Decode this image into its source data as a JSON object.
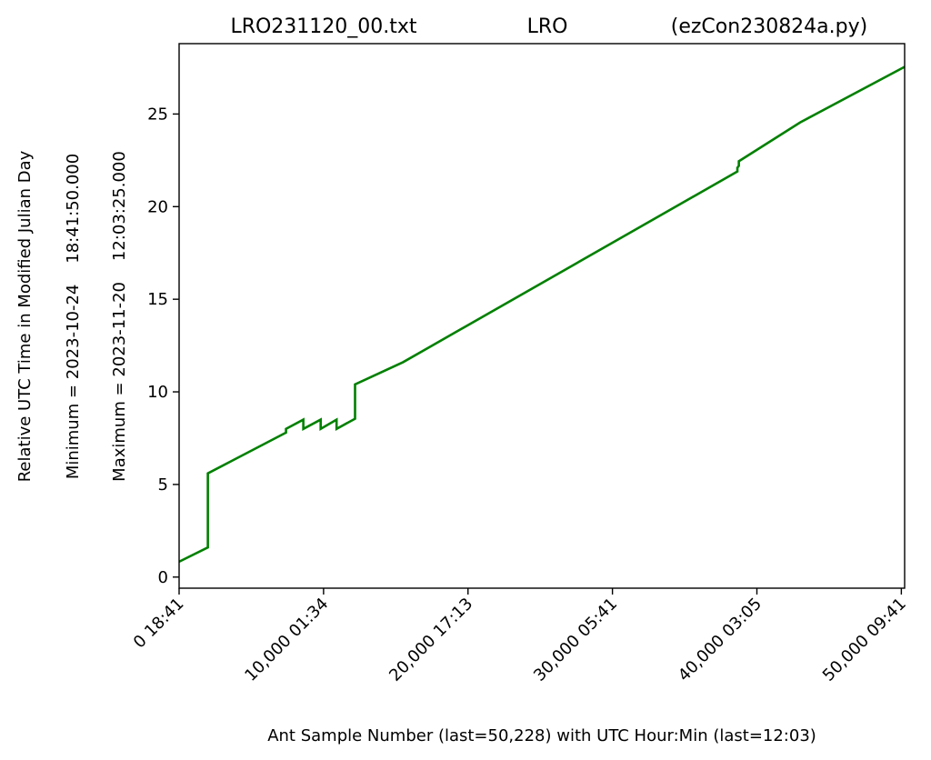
{
  "chart_data": {
    "type": "line",
    "title_parts": [
      "LRO231120_00.txt",
      "LRO",
      "(ezCon230824a.py)"
    ],
    "xlabel": "Ant Sample Number (last=50,228) with UTC Hour:Min (last=12:03)",
    "ylabel_lines": [
      "Relative UTC Time in Modified Julian Day",
      "Minimum = 2023-10-24    18:41:50.000",
      "Maximum = 2023-11-20    12:03:25.000"
    ],
    "xlim": [
      0,
      50228
    ],
    "ylim": [
      -0.6,
      28.8
    ],
    "xticks": [
      {
        "value": 0,
        "label": "0  18:41"
      },
      {
        "value": 10000,
        "label": "10,000  01:34"
      },
      {
        "value": 20000,
        "label": "20,000  17:13"
      },
      {
        "value": 30000,
        "label": "30,000  05:41"
      },
      {
        "value": 40000,
        "label": "40,000  03:05"
      },
      {
        "value": 50000,
        "label": "50,000  09:41"
      }
    ],
    "yticks": [
      {
        "value": 0,
        "label": "0"
      },
      {
        "value": 5,
        "label": "5"
      },
      {
        "value": 10,
        "label": "10"
      },
      {
        "value": 15,
        "label": "15"
      },
      {
        "value": 20,
        "label": "20"
      },
      {
        "value": 25,
        "label": "25"
      }
    ],
    "series": [
      {
        "color": "#008000",
        "x": [
          0,
          1990,
          1990,
          7400,
          7400,
          8600,
          8600,
          9800,
          9800,
          10900,
          10900,
          12180,
          12180,
          15500,
          38650,
          38650,
          38750,
          38750,
          43000,
          50228
        ],
        "y": [
          0.83,
          1.6,
          5.6,
          7.8,
          8.0,
          8.5,
          8.0,
          8.5,
          8.0,
          8.5,
          8.0,
          8.55,
          10.4,
          11.6,
          21.9,
          22.1,
          22.2,
          22.45,
          24.55,
          27.55
        ]
      }
    ]
  }
}
